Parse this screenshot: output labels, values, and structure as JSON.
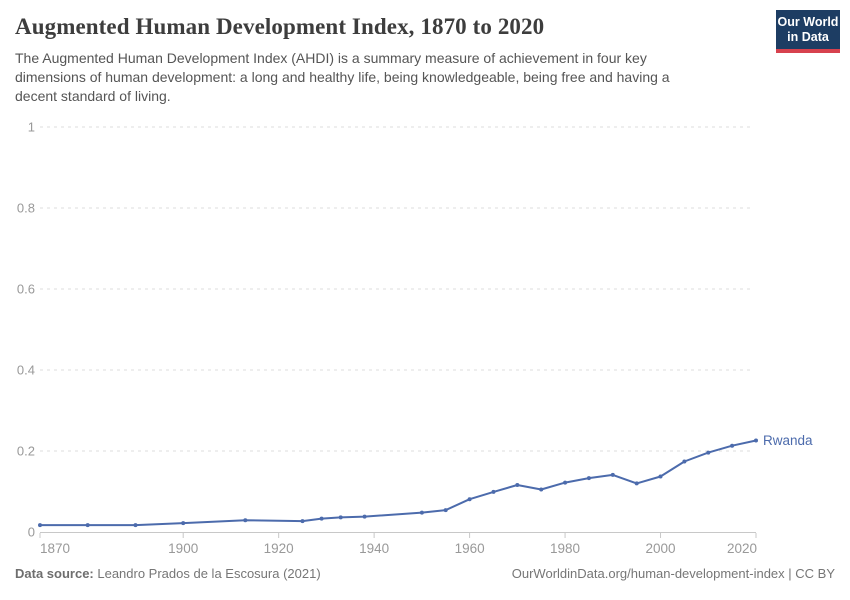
{
  "header": {
    "title": "Augmented Human Development Index, 1870 to 2020",
    "subtitle_lines": [
      "The Augmented Human Development Index (AHDI) is a summary measure of achievement in four key",
      "dimensions of human development: a long and healthy life, being knowledgeable, being free and having a",
      "decent standard of living."
    ]
  },
  "logo": {
    "line1": "Our World",
    "line2": "in Data"
  },
  "chart_data": {
    "type": "line",
    "title": "Augmented Human Development Index, 1870 to 2020",
    "x": [
      1870,
      1880,
      1890,
      1900,
      1913,
      1925,
      1929,
      1933,
      1938,
      1950,
      1955,
      1960,
      1965,
      1970,
      1975,
      1980,
      1985,
      1990,
      1995,
      2000,
      2005,
      2010,
      2015,
      2020
    ],
    "series": [
      {
        "name": "Rwanda",
        "values": [
          0.017,
          0.017,
          0.017,
          0.022,
          0.029,
          0.027,
          0.033,
          0.036,
          0.038,
          0.048,
          0.054,
          0.081,
          0.099,
          0.116,
          0.105,
          0.122,
          0.133,
          0.141,
          0.12,
          0.137,
          0.174,
          0.196,
          0.213,
          0.226
        ]
      }
    ],
    "xlabel": "",
    "ylabel": "",
    "xlim": [
      1870,
      2020
    ],
    "ylim": [
      0,
      1
    ],
    "xticks": [
      1870,
      1900,
      1920,
      1940,
      1960,
      1980,
      2000,
      2020
    ],
    "yticks": [
      0,
      0.2,
      0.4,
      0.6,
      0.8,
      1
    ],
    "grid": "horizontal-dashed",
    "legend_position": "end-of-line",
    "line_color": "#4c6bac",
    "grid_color": "#dcdcdc",
    "axis_color": "#c8c8c8",
    "tick_label_color": "#999999"
  },
  "footer": {
    "source_label": "Data source:",
    "source_value": " Leandro Prados de la Escosura (2021)",
    "link": "OurWorldinData.org/human-development-index | CC BY"
  }
}
